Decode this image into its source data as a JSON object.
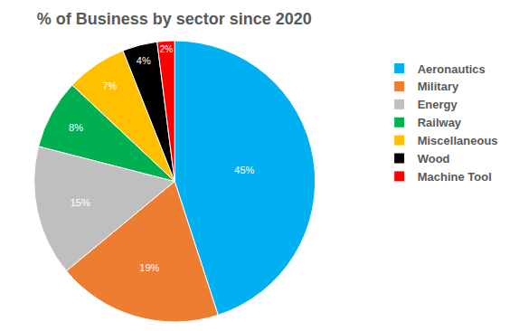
{
  "chart_data": {
    "type": "pie",
    "title": "% of Business by sector since 2020",
    "categories": [
      "Aeronautics",
      "Military",
      "Energy",
      "Railway",
      "Miscellaneous",
      "Wood",
      "Machine Tool"
    ],
    "values": [
      45,
      19,
      15,
      8,
      7,
      4,
      2
    ],
    "value_labels": [
      "45%",
      "19%",
      "15%",
      "8%",
      "7%",
      "4%",
      "2%"
    ],
    "colors": [
      "#00b0f0",
      "#ed7d31",
      "#bfbfbf",
      "#00b050",
      "#ffc000",
      "#000000",
      "#ff0000"
    ],
    "data_labels": true,
    "legend": "right"
  }
}
